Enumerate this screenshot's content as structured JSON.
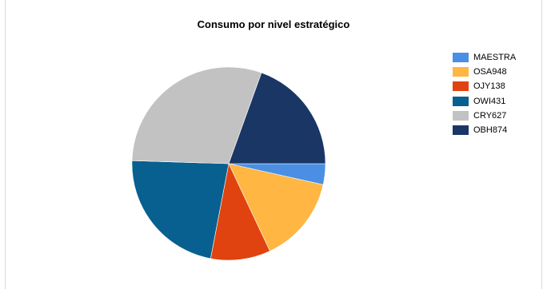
{
  "chart_data": {
    "type": "pie",
    "title": "Consumo por nivel estratégico",
    "legend_position": "right",
    "series": [
      {
        "name": "MAESTRA",
        "value": 3.5,
        "color": "#4a8fe3"
      },
      {
        "name": "OSA948",
        "value": 14.5,
        "color": "#ffb642"
      },
      {
        "name": "OJY138",
        "value": 10.0,
        "color": "#e0430f"
      },
      {
        "name": "OWI431",
        "value": 22.5,
        "color": "#07608f"
      },
      {
        "name": "CRY627",
        "value": 30.0,
        "color": "#c2c2c2"
      },
      {
        "name": "OBH874",
        "value": 19.5,
        "color": "#1a3664"
      }
    ]
  }
}
